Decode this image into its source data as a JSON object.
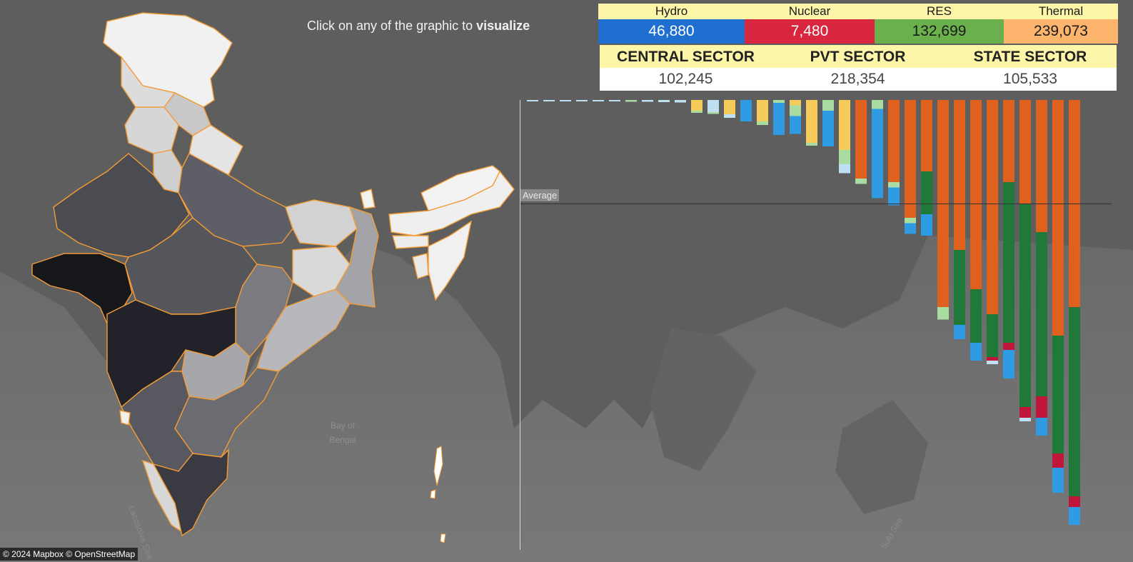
{
  "header": {
    "instruction_prefix": "Click on any of the graphic to",
    "instruction_emphasis": "visualize"
  },
  "fuel_summary": [
    {
      "name": "Hydro",
      "value": "46,880",
      "color": "#1f6fd1",
      "text_color": "#ffffff"
    },
    {
      "name": "Nuclear",
      "value": "7,480",
      "color": "#d7263d",
      "text_color": "#ffffff"
    },
    {
      "name": "RES",
      "value": "132,699",
      "color": "#6ab04c",
      "text_color": "#1a1a1a"
    },
    {
      "name": "Thermal",
      "value": "239,073",
      "color": "#fdb46c",
      "text_color": "#1a1a1a"
    }
  ],
  "sector_summary": [
    {
      "name": "CENTRAL SECTOR",
      "value": "102,245"
    },
    {
      "name": "PVT SECTOR",
      "value": "218,354"
    },
    {
      "name": "STATE SECTOR",
      "value": "105,533"
    }
  ],
  "map": {
    "water_labels": [
      "Bay of Bengal",
      "Laccadive Sea",
      "Sulu Sea"
    ],
    "attribution": "© 2024 Mapbox © OpenStreetMap",
    "state_outline_color": "#f39c36"
  },
  "chart_data": {
    "type": "bar",
    "orientation": "vertical-downward",
    "stacked": true,
    "average_label": "Average",
    "series_colors": {
      "hydro": "#2f9be3",
      "nuclear": "#c0163b",
      "res": "#1f7a3a",
      "thermal": "#e0601e",
      "small_hydro": "#a8dca0",
      "solar": "#f5cb5c",
      "other": "#bfe0f0"
    },
    "bars": [
      {
        "segments": [
          {
            "s": "other",
            "v": 0.3
          }
        ]
      },
      {
        "segments": [
          {
            "s": "other",
            "v": 0.3
          }
        ]
      },
      {
        "segments": [
          {
            "s": "other",
            "v": 0.3
          }
        ]
      },
      {
        "segments": [
          {
            "s": "other",
            "v": 0.3
          }
        ]
      },
      {
        "segments": [
          {
            "s": "other",
            "v": 0.4
          }
        ]
      },
      {
        "segments": [
          {
            "s": "other",
            "v": 0.4
          }
        ]
      },
      {
        "segments": [
          {
            "s": "small_hydro",
            "v": 0.5
          }
        ]
      },
      {
        "segments": [
          {
            "s": "other",
            "v": 0.5
          }
        ]
      },
      {
        "segments": [
          {
            "s": "other",
            "v": 0.6
          }
        ]
      },
      {
        "segments": [
          {
            "s": "other",
            "v": 0.7
          }
        ]
      },
      {
        "segments": [
          {
            "s": "solar",
            "v": 3.0
          },
          {
            "s": "small_hydro",
            "v": 0.6
          }
        ]
      },
      {
        "segments": [
          {
            "s": "other",
            "v": 3.4
          },
          {
            "s": "small_hydro",
            "v": 0.5
          }
        ]
      },
      {
        "segments": [
          {
            "s": "solar",
            "v": 4.0
          },
          {
            "s": "other",
            "v": 1.0
          }
        ]
      },
      {
        "segments": [
          {
            "s": "hydro",
            "v": 6.0
          }
        ]
      },
      {
        "segments": [
          {
            "s": "solar",
            "v": 6.0
          },
          {
            "s": "small_hydro",
            "v": 1.0
          }
        ]
      },
      {
        "segments": [
          {
            "s": "small_hydro",
            "v": 0.8
          },
          {
            "s": "hydro",
            "v": 9.0
          }
        ]
      },
      {
        "segments": [
          {
            "s": "solar",
            "v": 1.5
          },
          {
            "s": "small_hydro",
            "v": 3.0
          },
          {
            "s": "hydro",
            "v": 5.0
          }
        ]
      },
      {
        "segments": [
          {
            "s": "solar",
            "v": 12.0
          },
          {
            "s": "small_hydro",
            "v": 0.8
          }
        ]
      },
      {
        "segments": [
          {
            "s": "small_hydro",
            "v": 1.0
          },
          {
            "s": "small_hydro",
            "v": 2.0
          },
          {
            "s": "hydro",
            "v": 10.0
          }
        ]
      },
      {
        "segments": [
          {
            "s": "solar",
            "v": 14.0
          },
          {
            "s": "small_hydro",
            "v": 4.0
          },
          {
            "s": "other",
            "v": 2.5
          }
        ]
      },
      {
        "segments": [
          {
            "s": "thermal",
            "v": 22.0
          },
          {
            "s": "small_hydro",
            "v": 1.5
          }
        ]
      },
      {
        "segments": [
          {
            "s": "small_hydro",
            "v": 2.5
          },
          {
            "s": "hydro",
            "v": 25.0
          }
        ]
      },
      {
        "segments": [
          {
            "s": "thermal",
            "v": 23.0
          },
          {
            "s": "small_hydro",
            "v": 1.5
          },
          {
            "s": "hydro",
            "v": 5.0
          }
        ]
      },
      {
        "segments": [
          {
            "s": "thermal",
            "v": 33.0
          },
          {
            "s": "small_hydro",
            "v": 1.5
          },
          {
            "s": "hydro",
            "v": 3.0
          }
        ]
      },
      {
        "segments": [
          {
            "s": "thermal",
            "v": 20.0
          },
          {
            "s": "res",
            "v": 12.0
          },
          {
            "s": "hydro",
            "v": 6.0
          }
        ]
      },
      {
        "segments": [
          {
            "s": "thermal",
            "v": 58.0
          },
          {
            "s": "small_hydro",
            "v": 3.5
          }
        ]
      },
      {
        "segments": [
          {
            "s": "thermal",
            "v": 42.0
          },
          {
            "s": "res",
            "v": 21.0
          },
          {
            "s": "hydro",
            "v": 4.0
          }
        ]
      },
      {
        "segments": [
          {
            "s": "thermal",
            "v": 53.0
          },
          {
            "s": "res",
            "v": 15.0
          },
          {
            "s": "hydro",
            "v": 5.0
          }
        ]
      },
      {
        "segments": [
          {
            "s": "thermal",
            "v": 60.0
          },
          {
            "s": "res",
            "v": 12.0
          },
          {
            "s": "nuclear",
            "v": 1.0
          },
          {
            "s": "other",
            "v": 1.0
          }
        ]
      },
      {
        "segments": [
          {
            "s": "thermal",
            "v": 23.0
          },
          {
            "s": "res",
            "v": 45.0
          },
          {
            "s": "nuclear",
            "v": 2.0
          },
          {
            "s": "hydro",
            "v": 8.0
          }
        ]
      },
      {
        "segments": [
          {
            "s": "thermal",
            "v": 29.0
          },
          {
            "s": "res",
            "v": 57.0
          },
          {
            "s": "nuclear",
            "v": 3.0
          },
          {
            "s": "other",
            "v": 1.0
          }
        ]
      },
      {
        "segments": [
          {
            "s": "thermal",
            "v": 37.0
          },
          {
            "s": "res",
            "v": 46.0
          },
          {
            "s": "nuclear",
            "v": 6.0
          },
          {
            "s": "hydro",
            "v": 5.0
          }
        ]
      },
      {
        "segments": [
          {
            "s": "thermal",
            "v": 66.0
          },
          {
            "s": "res",
            "v": 33.0
          },
          {
            "s": "nuclear",
            "v": 4.0
          },
          {
            "s": "hydro",
            "v": 7.0
          }
        ]
      },
      {
        "segments": [
          {
            "s": "thermal",
            "v": 58.0
          },
          {
            "s": "res",
            "v": 53.0
          },
          {
            "s": "nuclear",
            "v": 3.0
          },
          {
            "s": "hydro",
            "v": 5.0
          }
        ]
      }
    ],
    "average_value": 29
  }
}
